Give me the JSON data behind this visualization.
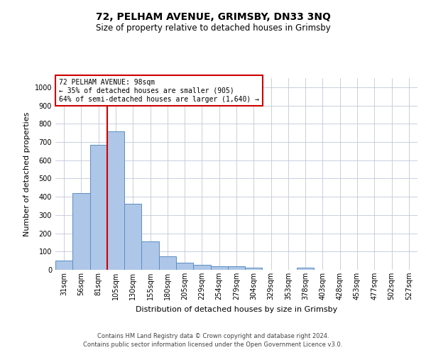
{
  "title": "72, PELHAM AVENUE, GRIMSBY, DN33 3NQ",
  "subtitle": "Size of property relative to detached houses in Grimsby",
  "xlabel": "Distribution of detached houses by size in Grimsby",
  "ylabel": "Number of detached properties",
  "categories": [
    "31sqm",
    "56sqm",
    "81sqm",
    "105sqm",
    "130sqm",
    "155sqm",
    "180sqm",
    "205sqm",
    "229sqm",
    "254sqm",
    "279sqm",
    "304sqm",
    "329sqm",
    "353sqm",
    "378sqm",
    "403sqm",
    "428sqm",
    "453sqm",
    "477sqm",
    "502sqm",
    "527sqm"
  ],
  "values": [
    50,
    420,
    685,
    760,
    360,
    155,
    75,
    40,
    28,
    18,
    18,
    10,
    0,
    0,
    10,
    0,
    0,
    0,
    0,
    0,
    0
  ],
  "bar_color": "#aec6e8",
  "bar_edge_color": "#5a8fc0",
  "red_line_x": 2.5,
  "annotation_text": "72 PELHAM AVENUE: 98sqm\n← 35% of detached houses are smaller (905)\n64% of semi-detached houses are larger (1,640) →",
  "annotation_box_color": "#ffffff",
  "annotation_box_edge": "#cc0000",
  "vline_color": "#cc0000",
  "ylim": [
    0,
    1050
  ],
  "yticks": [
    0,
    100,
    200,
    300,
    400,
    500,
    600,
    700,
    800,
    900,
    1000
  ],
  "footer1": "Contains HM Land Registry data © Crown copyright and database right 2024.",
  "footer2": "Contains public sector information licensed under the Open Government Licence v3.0.",
  "background_color": "#ffffff",
  "grid_color": "#c0c8d8",
  "title_fontsize": 10,
  "subtitle_fontsize": 8.5,
  "ylabel_fontsize": 8,
  "xlabel_fontsize": 8,
  "tick_fontsize": 7,
  "footer_fontsize": 6
}
